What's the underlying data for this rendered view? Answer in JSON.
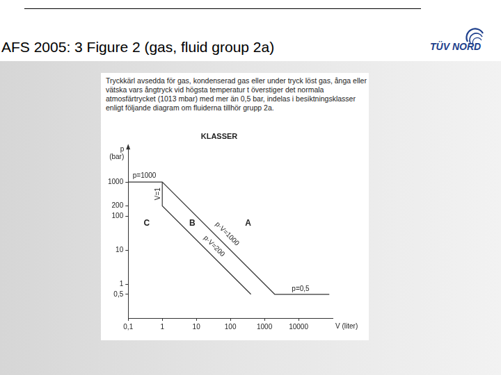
{
  "slide": {
    "title": "AFS 2005: 3 Figure 2 (gas, fluid group 2a)",
    "logo": "TÜV NORD",
    "figure_text": "Tryckkärl avsedda för gas, kondenserad gas eller under tryck löst gas, ånga eller vätska vars ångtryck vid högsta temperatur t överstiger det normala atmosfärtrycket (1013 mbar) med mer än 0,5 bar, indelas i besiktningsklasser enligt följande diagram om fluiderna tillhör grupp 2a."
  },
  "chart_data": {
    "type": "line",
    "title": "KLASSER",
    "xlabel": "V (liter)",
    "ylabel": "p (bar)",
    "log": true,
    "grid": false,
    "xlim": [
      0.1,
      100000
    ],
    "ylim": [
      0.1,
      10000
    ],
    "xticks": [
      {
        "value": 0.1,
        "label": "0,1"
      },
      1,
      10,
      100,
      1000,
      10000
    ],
    "yticks": [
      {
        "value": 0.5,
        "label": "0,5"
      },
      1,
      10,
      100,
      200,
      1000
    ],
    "series": [
      {
        "color": "#333333",
        "x": [
          0.1,
          1,
          2000,
          80000
        ],
        "values": [
          1000,
          1000,
          0.5,
          0.5
        ]
      },
      {
        "color": "#333333",
        "x": [
          1,
          1,
          400
        ],
        "values": [
          1000,
          200,
          0.5
        ]
      }
    ],
    "annotations": [
      {
        "text": "p=1000",
        "x": 0.3,
        "y": 1500
      },
      {
        "text": "V=1",
        "x": 0.75,
        "y": 450
      },
      {
        "text": "p·V=1000",
        "x": 80,
        "y": 30
      },
      {
        "text": "p·V=200",
        "x": 33,
        "y": 13
      },
      {
        "text": "p=0,5",
        "x": 11500,
        "y": 0.72
      }
    ],
    "regions": [
      {
        "text": "C",
        "x": 0.35,
        "y": 60
      },
      {
        "text": "B",
        "x": 7.6,
        "y": 60
      },
      {
        "text": "A",
        "x": 330,
        "y": 60
      }
    ]
  }
}
